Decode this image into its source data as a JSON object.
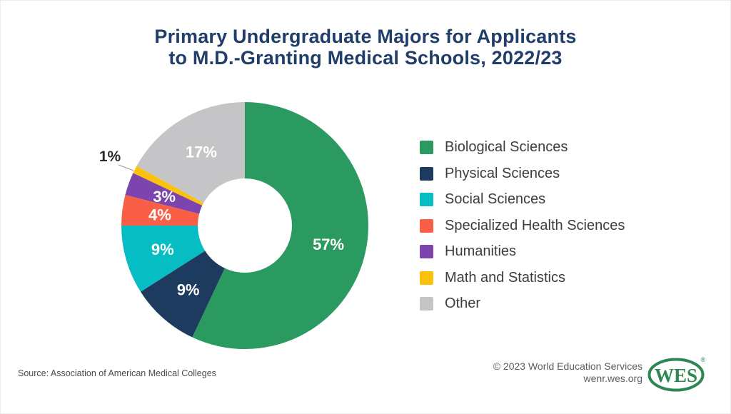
{
  "title": {
    "line1": "Primary Undergraduate Majors for Applicants",
    "line2": "to M.D.-Granting Medical Schools, 2022/23"
  },
  "chart_data": {
    "type": "pie",
    "subtype": "donut",
    "title": "Primary Undergraduate Majors for Applicants to M.D.-Granting Medical Schools, 2022/23",
    "categories": [
      "Biological Sciences",
      "Physical Sciences",
      "Social Sciences",
      "Specialized Health Sciences",
      "Humanities",
      "Math and Statistics",
      "Other"
    ],
    "values": [
      57,
      9,
      9,
      4,
      3,
      1,
      17
    ],
    "labels": [
      "57%",
      "9%",
      "9%",
      "4%",
      "3%",
      "1%",
      "17%"
    ],
    "colors": [
      "#2b9a61",
      "#1d3a5f",
      "#06bdc4",
      "#f95f47",
      "#7c44ad",
      "#fcc10c",
      "#c5c5c7"
    ],
    "start_angle_deg": 0,
    "direction": "clockwise",
    "legend_position": "right"
  },
  "footer": {
    "source": "Source: Association of American Medical Colleges",
    "copyright_line1": "© 2023 World Education Services",
    "copyright_line2": "wenr.wes.org",
    "logo_text": "WES",
    "logo_registered": "®"
  },
  "colors": {
    "title": "#203e69",
    "legend_text": "#3d3d3d",
    "wes_green": "#2e8653",
    "outside_label": "#2b2b2b"
  }
}
